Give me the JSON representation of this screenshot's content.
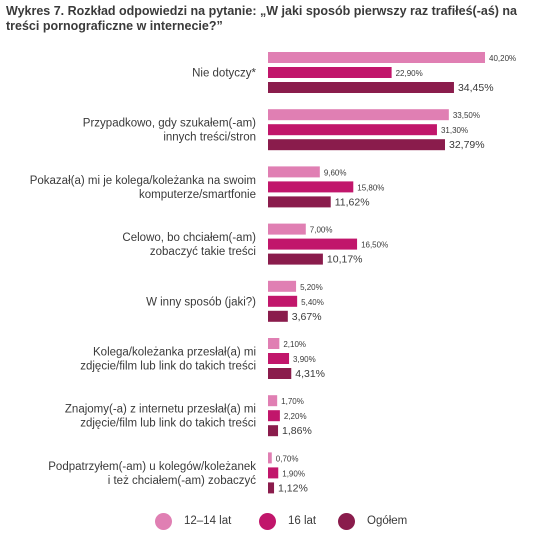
{
  "chart_data": {
    "type": "bar",
    "orientation": "horizontal",
    "title": "Wykres 7. Rozkład odpowiedzi na pytanie: „W jaki sposób pierwszy raz trafiłeś(-aś) na treści pornograficzne w internecie?”",
    "categories": [
      [
        "Nie dotyczy*"
      ],
      [
        "Przypadkowo, gdy szukałem(-am)",
        "innych treści/stron"
      ],
      [
        "Pokazał(a) mi je kolega/koleżanka na swoim",
        "komputerze/smartfonie"
      ],
      [
        "Celowo, bo chciałem(-am)",
        "zobaczyć takie treści"
      ],
      [
        "W inny sposób (jaki?)"
      ],
      [
        "Kolega/koleżanka przesłał(a) mi",
        "zdjęcie/film lub link do takich treści"
      ],
      [
        "Znajomy(-a) z internetu przesłał(a) mi",
        "zdjęcie/film lub link do takich treści"
      ],
      [
        "Podpatrzyłem(-am) u kolegów/koleżanek",
        "i też chciałem(-am) zobaczyć"
      ]
    ],
    "series": [
      {
        "name": "12–14 lat",
        "color": "#e07fb3",
        "values": [
          40.2,
          33.5,
          9.6,
          7.0,
          5.2,
          2.1,
          1.7,
          0.7
        ],
        "labels": [
          "40,20%",
          "33,50%",
          "9,60%",
          "7,00%",
          "5,20%",
          "2,10%",
          "1,70%",
          "0,70%"
        ]
      },
      {
        "name": "16 lat",
        "color": "#c1166b",
        "values": [
          22.9,
          31.3,
          15.8,
          16.5,
          5.4,
          3.9,
          2.2,
          1.9
        ],
        "labels": [
          "22,90%",
          "31,30%",
          "15,80%",
          "16,50%",
          "5,40%",
          "3,90%",
          "2,20%",
          "1,90%"
        ]
      },
      {
        "name": "Ogółem",
        "color": "#8a1c4c",
        "values": [
          34.45,
          32.79,
          11.62,
          10.17,
          3.67,
          4.31,
          1.86,
          1.12
        ],
        "labels": [
          "34,45%",
          "32,79%",
          "11,62%",
          "10,17%",
          "3,67%",
          "4,31%",
          "1,86%",
          "1,12%"
        ]
      }
    ],
    "xlim": [
      0,
      40.2
    ],
    "legend": "bottom"
  }
}
